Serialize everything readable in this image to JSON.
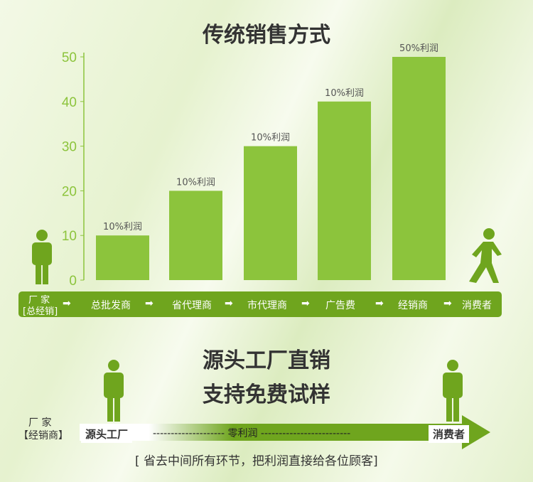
{
  "title": "传统销售方式",
  "chart_data": {
    "type": "bar",
    "categories": [
      "总批发商",
      "省代理商",
      "市代理商",
      "广告费",
      "经销商"
    ],
    "values": [
      10,
      20,
      30,
      40,
      50
    ],
    "data_labels": [
      "10%利润",
      "10%利润",
      "10%利润",
      "10%利润",
      "50%利润"
    ],
    "yticks": [
      0,
      10,
      20,
      30,
      40,
      50
    ],
    "ylim": [
      0,
      50
    ],
    "grid": false,
    "bar_color": "#8cc43c"
  },
  "flow": {
    "items": [
      "厂 家",
      "[总经销]",
      "总批发商",
      "省代理商",
      "市代理商",
      "广告费",
      "经销商",
      "消费者"
    ]
  },
  "direct": {
    "line1": "源头工厂直销",
    "line2": "支持免费试样",
    "left_label1": "厂  家",
    "left_label2": "【经销商】",
    "start": "源头工厂",
    "middle": "-------------------- 零利润 -------------------------",
    "end": "消费者",
    "note": "[ 省去中间所有环节，把利润直接给各位顾客]"
  },
  "colors": {
    "green": "#6fa51e",
    "bar": "#8cc43c"
  }
}
